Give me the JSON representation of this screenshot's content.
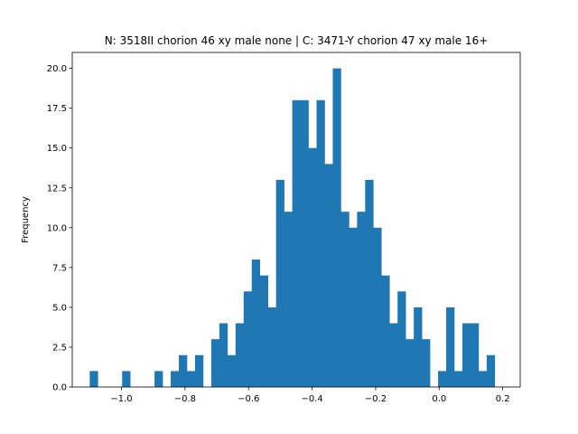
{
  "chart_data": {
    "type": "bar",
    "title": "N: 3518II chorion 46 xy male none | C: 3471-Y chorion 47 xy male 16+",
    "xlabel": "",
    "ylabel": "Frequency",
    "xlim": [
      -1.155,
      0.255
    ],
    "ylim": [
      0,
      21
    ],
    "grid": false,
    "bar_color": "#1f77b4",
    "bin_width": 0.0255,
    "bins_start": [
      -1.1,
      -1.0745,
      -1.049,
      -1.0235,
      -0.998,
      -0.9725,
      -0.947,
      -0.9215,
      -0.896,
      -0.8705,
      -0.845,
      -0.8195,
      -0.794,
      -0.7685,
      -0.743,
      -0.7175,
      -0.692,
      -0.6665,
      -0.641,
      -0.6155,
      -0.59,
      -0.5645,
      -0.539,
      -0.5135,
      -0.488,
      -0.4625,
      -0.437,
      -0.4115,
      -0.386,
      -0.3605,
      -0.335,
      -0.3095,
      -0.284,
      -0.2585,
      -0.233,
      -0.2075,
      -0.182,
      -0.1565,
      -0.131,
      -0.1055,
      -0.08,
      -0.0545,
      -0.029,
      -0.0035,
      0.022,
      0.0475,
      0.073,
      0.0985,
      0.124,
      0.1495
    ],
    "counts": [
      1,
      0,
      0,
      0,
      1,
      0,
      0,
      0,
      1,
      0,
      1,
      2,
      1,
      2,
      0,
      3,
      4,
      2,
      4,
      6,
      8,
      7,
      5,
      13,
      11,
      18,
      18,
      15,
      18,
      14,
      20,
      11,
      10,
      11,
      13,
      10,
      7,
      4,
      6,
      3,
      5,
      3,
      0,
      1,
      5,
      1,
      4,
      4,
      1,
      2
    ],
    "x_ticks": [
      -1.0,
      -0.8,
      -0.6,
      -0.4,
      -0.2,
      0.0,
      0.2
    ],
    "x_tick_labels": [
      "−1.0",
      "−0.8",
      "−0.6",
      "−0.4",
      "−0.2",
      "0.0",
      "0.2"
    ],
    "y_ticks": [
      0,
      2.5,
      5,
      7.5,
      10,
      12.5,
      15,
      17.5,
      20
    ],
    "y_tick_labels": [
      "0.0",
      "2.5",
      "5.0",
      "7.5",
      "10.0",
      "12.5",
      "15.0",
      "17.5",
      "20.0"
    ]
  }
}
